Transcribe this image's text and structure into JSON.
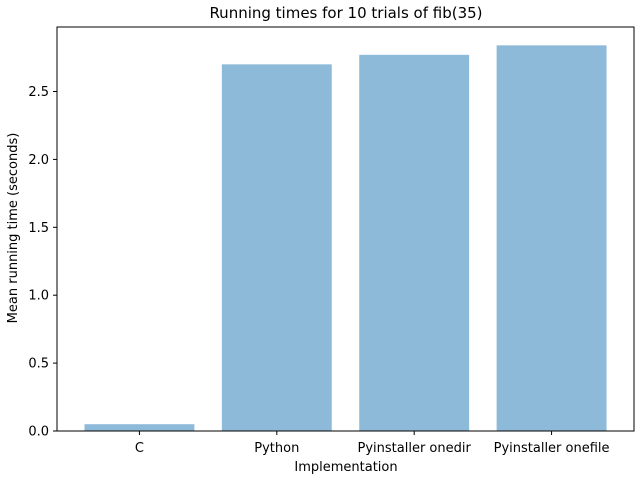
{
  "chart_data": {
    "type": "bar",
    "title": "Running times for 10 trials of fib(35)",
    "xlabel": "Implementation",
    "ylabel": "Mean running time (seconds)",
    "categories": [
      "C",
      "Python",
      "Pyinstaller onedir",
      "Pyinstaller onefile"
    ],
    "values": [
      0.05,
      2.7,
      2.77,
      2.84
    ],
    "ylim": [
      0,
      2.975
    ],
    "yticks": [
      0.0,
      0.5,
      1.0,
      1.5,
      2.0,
      2.5
    ],
    "ytick_labels": [
      "0.0",
      "0.5",
      "1.0",
      "1.5",
      "2.0",
      "2.5"
    ],
    "bar_color": "#8EBAD9",
    "grid": false,
    "legend": "none"
  }
}
